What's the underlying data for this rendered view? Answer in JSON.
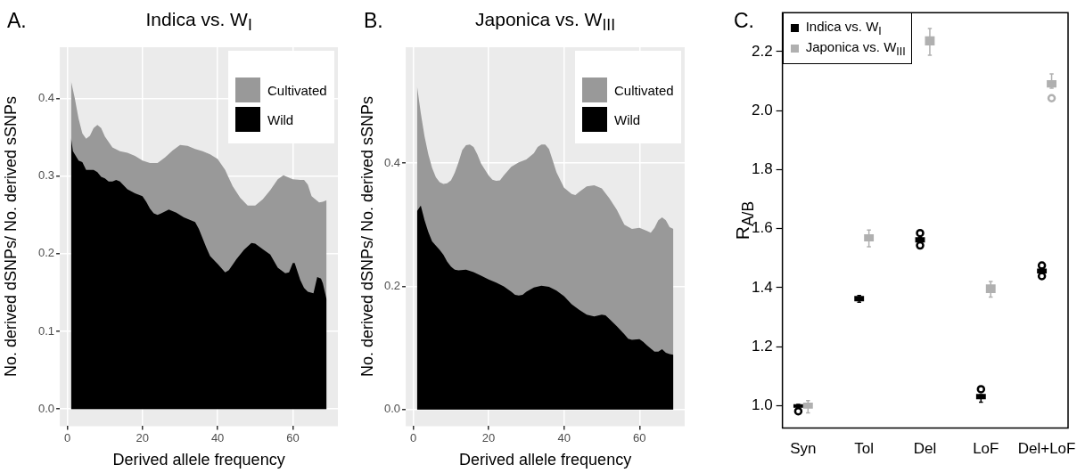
{
  "chart_data": [
    {
      "type": "area",
      "title": "Indica vs. W$_{I}$",
      "xlabel": "Derived allele frequency",
      "ylabel": "No. derived dSNPs/ No. derived sSNPs",
      "annotations": [
        "A."
      ],
      "grid": true,
      "legend": "top right",
      "xlim": [
        -2,
        72
      ],
      "ylim": [
        -0.022,
        0.466
      ],
      "xticks": [
        0,
        20,
        40,
        60
      ],
      "yticks": [
        {
          "value": 0,
          "label": "0.0"
        },
        0.1,
        0.2,
        0.3,
        0.4
      ],
      "series": [
        {
          "name": "Cultivated",
          "color": "#999999",
          "x": [
            1,
            2,
            3,
            4,
            5,
            6,
            7,
            8,
            9,
            10,
            12,
            14,
            16,
            18,
            20,
            22,
            24,
            26,
            28,
            30,
            32,
            34,
            36,
            38,
            40,
            42,
            44,
            46,
            48,
            50,
            52,
            54,
            56,
            57.5,
            59,
            60,
            62,
            63,
            64,
            65,
            66,
            67,
            68,
            69
          ],
          "values": [
            0.422,
            0.4,
            0.374,
            0.355,
            0.348,
            0.352,
            0.362,
            0.366,
            0.362,
            0.351,
            0.337,
            0.332,
            0.33,
            0.326,
            0.32,
            0.317,
            0.317,
            0.324,
            0.333,
            0.34,
            0.339,
            0.335,
            0.332,
            0.328,
            0.322,
            0.308,
            0.287,
            0.272,
            0.262,
            0.262,
            0.27,
            0.282,
            0.296,
            0.301,
            0.298,
            0.296,
            0.295,
            0.295,
            0.289,
            0.274,
            0.27,
            0.266,
            0.267,
            0.269
          ]
        },
        {
          "name": "Wild",
          "color": "#000000",
          "x": [
            1,
            1.5,
            3,
            4,
            5,
            6,
            7,
            8,
            9,
            10,
            11,
            12,
            13,
            14,
            16,
            18,
            20,
            21,
            22,
            23,
            24,
            25,
            27,
            29,
            31,
            33,
            34,
            35,
            37,
            38,
            40,
            42,
            43,
            45,
            47,
            49,
            50,
            52,
            54,
            56,
            58,
            59,
            60,
            60.5,
            62,
            63,
            64,
            65.5,
            66.5,
            67.5,
            68,
            69
          ],
          "values": [
            0.349,
            0.332,
            0.32,
            0.318,
            0.308,
            0.308,
            0.308,
            0.305,
            0.299,
            0.297,
            0.293,
            0.293,
            0.295,
            0.293,
            0.283,
            0.278,
            0.274,
            0.267,
            0.258,
            0.252,
            0.25,
            0.252,
            0.257,
            0.253,
            0.247,
            0.243,
            0.241,
            0.232,
            0.208,
            0.197,
            0.187,
            0.176,
            0.179,
            0.193,
            0.205,
            0.214,
            0.213,
            0.206,
            0.199,
            0.182,
            0.175,
            0.176,
            0.188,
            0.188,
            0.166,
            0.156,
            0.151,
            0.149,
            0.17,
            0.168,
            0.162,
            0.141
          ]
        }
      ]
    },
    {
      "type": "area",
      "title": "Japonica vs. W$_{III}$",
      "xlabel": "Derived allele frequency",
      "ylabel": "No. derived dSNPs/ No. derived sSNPs",
      "annotations": [
        "B."
      ],
      "grid": true,
      "legend": "top right",
      "xlim": [
        -2,
        72
      ],
      "ylim": [
        -0.027,
        0.588
      ],
      "xticks": [
        0,
        20,
        40,
        60
      ],
      "yticks": [
        {
          "value": 0,
          "label": "0.0"
        },
        0.2,
        0.4
      ],
      "series": [
        {
          "name": "Cultivated",
          "color": "#999999",
          "x": [
            1,
            2,
            3,
            4,
            5,
            6,
            7,
            8,
            9,
            10,
            11,
            12,
            13,
            14,
            15,
            16,
            17,
            18,
            20,
            21,
            22,
            23,
            24,
            26,
            28,
            30,
            32,
            33,
            34,
            35,
            36,
            37,
            38,
            40,
            42,
            43,
            44,
            46,
            48,
            50,
            52,
            54,
            56,
            58,
            60,
            62,
            63,
            64,
            65,
            66,
            67,
            68,
            69
          ],
          "values": [
            0.525,
            0.481,
            0.443,
            0.414,
            0.392,
            0.377,
            0.369,
            0.366,
            0.367,
            0.372,
            0.384,
            0.401,
            0.421,
            0.429,
            0.43,
            0.426,
            0.414,
            0.399,
            0.38,
            0.373,
            0.371,
            0.372,
            0.38,
            0.394,
            0.401,
            0.406,
            0.416,
            0.426,
            0.43,
            0.43,
            0.423,
            0.404,
            0.385,
            0.36,
            0.35,
            0.348,
            0.353,
            0.362,
            0.364,
            0.359,
            0.343,
            0.324,
            0.3,
            0.293,
            0.295,
            0.29,
            0.287,
            0.295,
            0.307,
            0.312,
            0.307,
            0.296,
            0.293
          ]
        },
        {
          "name": "Wild",
          "color": "#000000",
          "x": [
            1,
            2,
            3,
            4,
            5,
            6,
            7,
            8,
            9,
            10,
            11,
            12,
            14,
            16,
            18,
            20,
            22,
            24,
            26,
            27,
            28,
            29,
            30,
            32,
            34,
            36,
            38,
            40,
            42,
            44,
            46,
            48,
            50,
            51,
            52,
            54,
            56,
            57,
            58,
            60,
            61,
            62,
            64,
            65,
            66,
            67,
            68,
            69
          ],
          "values": [
            0.322,
            0.331,
            0.307,
            0.288,
            0.273,
            0.266,
            0.259,
            0.251,
            0.24,
            0.232,
            0.227,
            0.226,
            0.227,
            0.223,
            0.217,
            0.211,
            0.206,
            0.2,
            0.191,
            0.186,
            0.185,
            0.186,
            0.191,
            0.198,
            0.201,
            0.199,
            0.193,
            0.184,
            0.171,
            0.162,
            0.154,
            0.151,
            0.154,
            0.153,
            0.147,
            0.135,
            0.122,
            0.115,
            0.113,
            0.114,
            0.11,
            0.104,
            0.094,
            0.094,
            0.098,
            0.092,
            0.09,
            0.089
          ]
        }
      ]
    },
    {
      "type": "box",
      "ylabel": "R$_{A/B}$",
      "annotations": [
        "C."
      ],
      "legend": "top left",
      "categories": [
        "Syn",
        "Tol",
        "Del",
        "LoF",
        "Del+LoF"
      ],
      "ylim": [
        0.924,
        2.332
      ],
      "yticks": [
        {
          "value": 1,
          "label": "1.0"
        },
        1.2,
        1.4,
        1.6,
        1.8,
        {
          "value": 2,
          "label": "2.0"
        },
        2.2
      ],
      "series": [
        {
          "name": "Indica vs. W$_{I}$",
          "color": "#000000",
          "boxes": [
            {
              "low": 0.995,
              "q1": 0.996,
              "median": 0.999,
              "q3": 1.002,
              "high": 1.004,
              "outliers": [
                0.981
              ]
            },
            {
              "low": 1.351,
              "q1": 1.357,
              "median": 1.363,
              "q3": 1.369,
              "high": 1.373
            },
            {
              "low": 1.553,
              "q1": 1.556,
              "median": 1.562,
              "q3": 1.568,
              "high": 1.57,
              "outliers": [
                1.585,
                1.543
              ]
            },
            {
              "low": 1.012,
              "q1": 1.025,
              "median": 1.031,
              "q3": 1.037,
              "high": 1.037,
              "outliers": [
                1.056
              ]
            },
            {
              "low": 1.448,
              "q1": 1.451,
              "median": 1.457,
              "q3": 1.462,
              "high": 1.466,
              "outliers": [
                1.475,
                1.439
              ]
            }
          ]
        },
        {
          "name": "Japonica vs. W$_{III}$",
          "color": "#b0b0b0",
          "boxes": [
            {
              "low": 0.976,
              "q1": 0.993,
              "median": 1.0,
              "q3": 1.007,
              "high": 1.017
            },
            {
              "low": 1.539,
              "q1": 1.56,
              "median": 1.571,
              "q3": 1.578,
              "high": 1.595
            },
            {
              "low": 2.188,
              "q1": 2.224,
              "median": 2.237,
              "q3": 2.249,
              "high": 2.278
            },
            {
              "low": 1.368,
              "q1": 1.385,
              "median": 1.397,
              "q3": 1.408,
              "high": 1.421
            },
            {
              "low": 2.076,
              "q1": 2.081,
              "median": 2.09,
              "q3": 2.1,
              "high": 2.124,
              "outliers": [
                2.042
              ]
            }
          ]
        }
      ]
    }
  ]
}
